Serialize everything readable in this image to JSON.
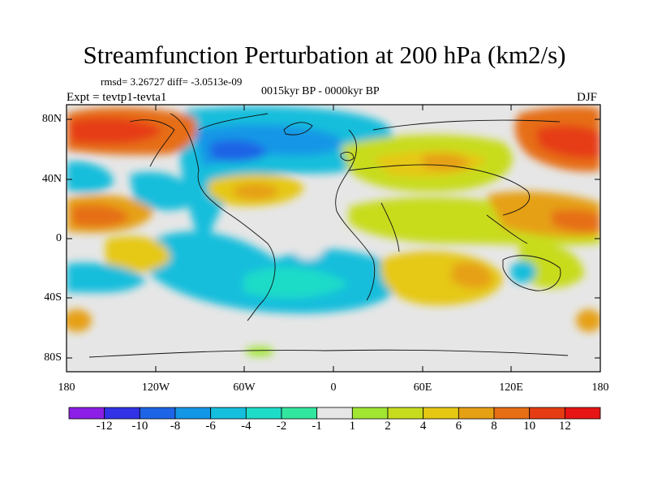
{
  "title": "Streamfunction Perturbation at 200 hPa (km2/s)",
  "stats": "rmsd= 3.26727 diff= -3.0513e-09",
  "period": "0015kyr BP - 0000kyr BP",
  "expt": "Expt = tevtp1-tevta1",
  "season": "DJF",
  "lat_labels": [
    "80N",
    "40N",
    "0",
    "40S",
    "80S"
  ],
  "lon_labels": [
    "180",
    "120W",
    "60W",
    "0",
    "60E",
    "120E",
    "180"
  ],
  "colorbar": {
    "labels": [
      "-12",
      "-10",
      "-8",
      "-6",
      "-4",
      "-2",
      "-1",
      "1",
      "2",
      "4",
      "6",
      "8",
      "10",
      "12"
    ],
    "colors": [
      "#8c1ee6",
      "#3232e6",
      "#1e64e6",
      "#1496e6",
      "#14bedc",
      "#1edcc8",
      "#32e6a0",
      "#e6e6e6",
      "#a0e632",
      "#c8dc1e",
      "#e6c814",
      "#e6a014",
      "#e66e14",
      "#e63c14",
      "#e61414"
    ]
  }
}
